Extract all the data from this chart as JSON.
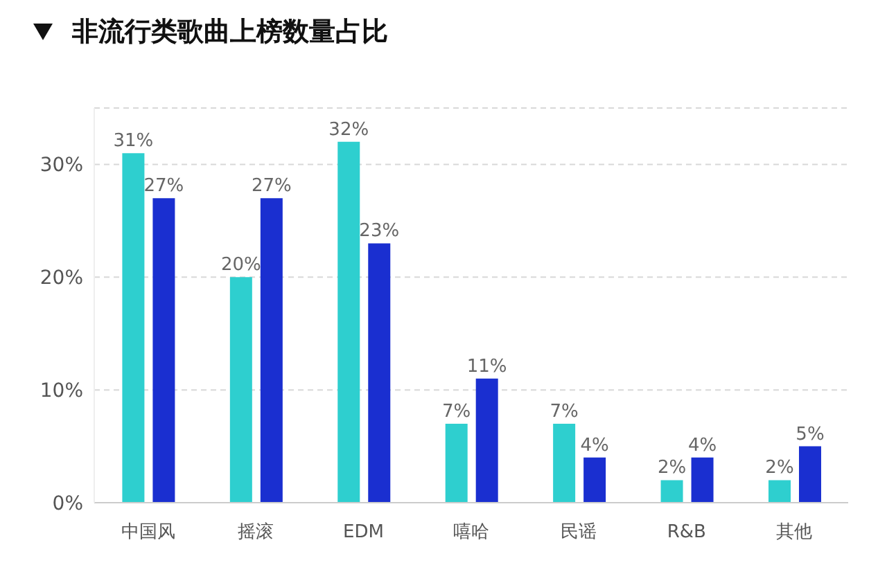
{
  "chart_data": {
    "type": "bar",
    "title": "非流行类歌曲上榜数量占比",
    "categories": [
      "中国风",
      "摇滚",
      "EDM",
      "嘻哈",
      "民谣",
      "R&B",
      "其他"
    ],
    "series": [
      {
        "color": "#2ecfcf",
        "values": [
          31,
          20,
          32,
          7,
          7,
          2,
          2
        ],
        "value_labels": [
          "31%",
          "20%",
          "32%",
          "7%",
          "7%",
          "2%",
          "2%"
        ]
      },
      {
        "color": "#1a2fd0",
        "values": [
          27,
          27,
          23,
          11,
          4,
          4,
          5
        ],
        "value_labels": [
          "27%",
          "27%",
          "23%",
          "11%",
          "4%",
          "4%",
          "5%"
        ]
      }
    ],
    "ylim": [
      0,
      35
    ],
    "yticks": [
      {
        "value": 0,
        "label": "0%"
      },
      {
        "value": 10,
        "label": "10%"
      },
      {
        "value": 20,
        "label": "20%"
      },
      {
        "value": 30,
        "label": "30%"
      }
    ],
    "grid": "y",
    "legend": false
  }
}
